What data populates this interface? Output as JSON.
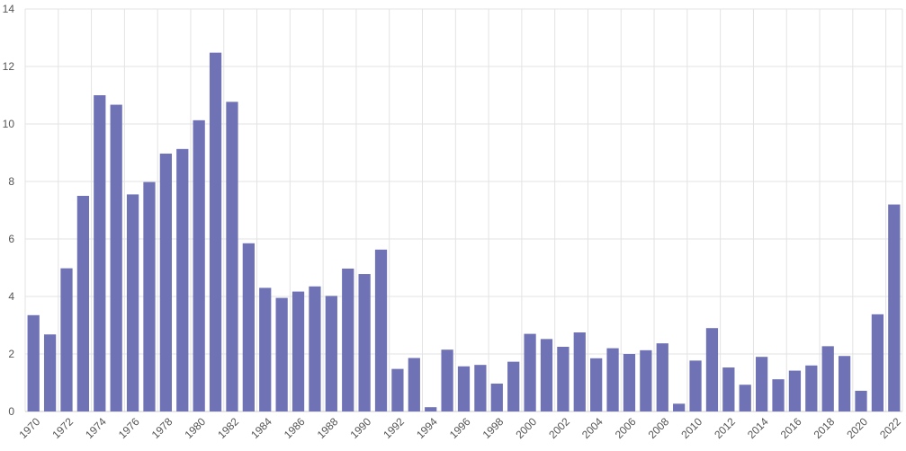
{
  "chart_data": {
    "type": "bar",
    "title": "",
    "xlabel": "",
    "ylabel": "",
    "ylim": [
      0,
      14
    ],
    "yticks": [
      0,
      2,
      4,
      6,
      8,
      10,
      12,
      14
    ],
    "grid": true,
    "bar_color": "#6f73b6",
    "categories": [
      "1970",
      "1971",
      "1972",
      "1973",
      "1974",
      "1975",
      "1976",
      "1977",
      "1978",
      "1979",
      "1980",
      "1981",
      "1982",
      "1983",
      "1984",
      "1985",
      "1986",
      "1987",
      "1988",
      "1989",
      "1990",
      "1991",
      "1992",
      "1993",
      "1994",
      "1995",
      "1996",
      "1997",
      "1998",
      "1999",
      "2000",
      "2001",
      "2002",
      "2003",
      "2004",
      "2005",
      "2006",
      "2007",
      "2008",
      "2009",
      "2010",
      "2011",
      "2012",
      "2013",
      "2014",
      "2015",
      "2016",
      "2017",
      "2018",
      "2019",
      "2020",
      "2021",
      "2022"
    ],
    "x_tick_labels": [
      "1970",
      "1972",
      "1974",
      "1976",
      "1978",
      "1980",
      "1982",
      "1984",
      "1986",
      "1988",
      "1990",
      "1992",
      "1994",
      "1996",
      "1998",
      "2000",
      "2002",
      "2004",
      "2006",
      "2008",
      "2010",
      "2012",
      "2014",
      "2016",
      "2018",
      "2020",
      "2022"
    ],
    "values": [
      3.35,
      2.68,
      4.98,
      7.5,
      11.0,
      10.67,
      7.55,
      7.98,
      8.97,
      9.13,
      10.13,
      12.48,
      10.77,
      5.85,
      4.3,
      3.95,
      4.17,
      4.35,
      4.02,
      4.97,
      4.78,
      5.63,
      1.48,
      1.86,
      0.15,
      2.15,
      1.57,
      1.62,
      0.97,
      1.73,
      2.7,
      2.52,
      2.25,
      2.75,
      1.85,
      2.2,
      2.0,
      2.13,
      2.37,
      0.27,
      1.77,
      2.9,
      1.53,
      0.93,
      1.9,
      1.12,
      1.42,
      1.6,
      2.27,
      1.93,
      0.72,
      3.38,
      7.2
    ]
  }
}
